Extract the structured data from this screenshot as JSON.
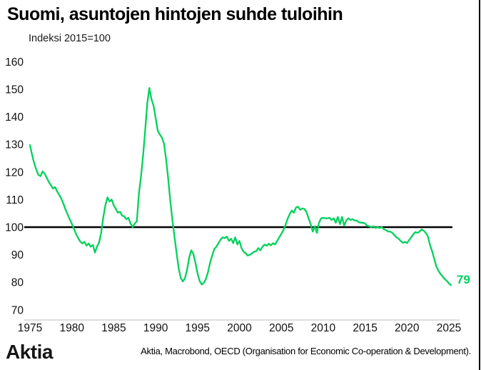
{
  "title": "Suomi, asuntojen hintojen suhde tuloihin",
  "subtitle": "Indeksi 2015=100",
  "footer": {
    "logo": "Aktia",
    "source": "Aktia, Macrobond, OECD (Organisation for Economic Co-operation & Development)."
  },
  "colors": {
    "line": "#00d15c",
    "reference": "#000000",
    "axis": "#c9c9c9",
    "text": "#111111"
  },
  "chart_data": {
    "type": "line",
    "title": "Suomi, asuntojen hintojen suhde tuloihin",
    "subtitle": "Indeksi 2015=100",
    "xlabel": "",
    "ylabel": "",
    "grid": false,
    "legend": false,
    "xlim": [
      1975,
      2026
    ],
    "ylim": [
      70,
      160
    ],
    "y_ticks": [
      160,
      150,
      140,
      130,
      120,
      110,
      100,
      90,
      80,
      70
    ],
    "x_ticks": [
      1975,
      1980,
      1985,
      1990,
      1995,
      2000,
      2005,
      2010,
      2015,
      2020,
      2025
    ],
    "reference_line": 100,
    "end_label": "79",
    "series": [
      {
        "name": "Suomi, asuntojen hintojen suhde tuloihin",
        "color": "#00d15c",
        "points": [
          [
            1975.0,
            129.8
          ],
          [
            1975.25,
            126.3
          ],
          [
            1975.5,
            123.2
          ],
          [
            1975.75,
            120.9
          ],
          [
            1976.0,
            119.0
          ],
          [
            1976.25,
            118.5
          ],
          [
            1976.5,
            120.2
          ],
          [
            1976.75,
            119.4
          ],
          [
            1977.0,
            117.9
          ],
          [
            1977.25,
            116.4
          ],
          [
            1977.5,
            115.2
          ],
          [
            1977.75,
            114.0
          ],
          [
            1978.0,
            114.5
          ],
          [
            1978.25,
            112.9
          ],
          [
            1978.5,
            111.6
          ],
          [
            1978.75,
            110.3
          ],
          [
            1979.0,
            108.4
          ],
          [
            1979.25,
            106.3
          ],
          [
            1979.5,
            104.6
          ],
          [
            1979.75,
            102.8
          ],
          [
            1980.0,
            101.2
          ],
          [
            1980.25,
            99.4
          ],
          [
            1980.5,
            97.5
          ],
          [
            1980.75,
            96.0
          ],
          [
            1981.0,
            94.8
          ],
          [
            1981.25,
            94.1
          ],
          [
            1981.5,
            94.7
          ],
          [
            1981.75,
            93.3
          ],
          [
            1982.0,
            94.1
          ],
          [
            1982.25,
            92.9
          ],
          [
            1982.5,
            93.6
          ],
          [
            1982.75,
            90.8
          ],
          [
            1983.0,
            92.9
          ],
          [
            1983.25,
            94.5
          ],
          [
            1983.5,
            98.0
          ],
          [
            1983.75,
            103.5
          ],
          [
            1984.0,
            108.0
          ],
          [
            1984.25,
            110.8
          ],
          [
            1984.5,
            109.3
          ],
          [
            1984.75,
            110.0
          ],
          [
            1985.0,
            107.9
          ],
          [
            1985.25,
            106.6
          ],
          [
            1985.5,
            105.2
          ],
          [
            1985.75,
            105.6
          ],
          [
            1986.0,
            104.2
          ],
          [
            1986.25,
            103.9
          ],
          [
            1986.5,
            102.9
          ],
          [
            1986.75,
            103.4
          ],
          [
            1987.0,
            101.3
          ],
          [
            1987.25,
            100.0
          ],
          [
            1987.5,
            101.3
          ],
          [
            1987.75,
            102.1
          ],
          [
            1988.0,
            112.0
          ],
          [
            1988.25,
            118.5
          ],
          [
            1988.5,
            126.0
          ],
          [
            1988.75,
            135.0
          ],
          [
            1989.0,
            145.0
          ],
          [
            1989.25,
            150.5
          ],
          [
            1989.5,
            146.5
          ],
          [
            1989.75,
            144.0
          ],
          [
            1990.0,
            139.5
          ],
          [
            1990.25,
            135.0
          ],
          [
            1990.5,
            133.6
          ],
          [
            1990.75,
            132.5
          ],
          [
            1991.0,
            130.3
          ],
          [
            1991.25,
            124.5
          ],
          [
            1991.5,
            117.5
          ],
          [
            1991.75,
            109.5
          ],
          [
            1992.0,
            102.5
          ],
          [
            1992.25,
            96.5
          ],
          [
            1992.5,
            90.5
          ],
          [
            1992.75,
            85.0
          ],
          [
            1993.0,
            81.5
          ],
          [
            1993.25,
            80.3
          ],
          [
            1993.5,
            81.5
          ],
          [
            1993.75,
            84.5
          ],
          [
            1994.0,
            89.0
          ],
          [
            1994.25,
            91.6
          ],
          [
            1994.5,
            90.3
          ],
          [
            1994.75,
            87.0
          ],
          [
            1995.0,
            83.2
          ],
          [
            1995.25,
            80.5
          ],
          [
            1995.5,
            79.2
          ],
          [
            1995.75,
            79.8
          ],
          [
            1996.0,
            81.2
          ],
          [
            1996.25,
            83.7
          ],
          [
            1996.5,
            87.1
          ],
          [
            1996.75,
            89.7
          ],
          [
            1997.0,
            92.1
          ],
          [
            1997.25,
            92.9
          ],
          [
            1997.5,
            94.2
          ],
          [
            1997.75,
            95.5
          ],
          [
            1998.0,
            96.3
          ],
          [
            1998.25,
            96.0
          ],
          [
            1998.5,
            96.6
          ],
          [
            1998.75,
            95.0
          ],
          [
            1999.0,
            95.8
          ],
          [
            1999.25,
            94.2
          ],
          [
            1999.5,
            96.3
          ],
          [
            1999.75,
            93.7
          ],
          [
            2000.0,
            95.0
          ],
          [
            2000.25,
            92.4
          ],
          [
            2000.5,
            91.1
          ],
          [
            2000.75,
            90.5
          ],
          [
            2001.0,
            89.7
          ],
          [
            2001.25,
            90.0
          ],
          [
            2001.5,
            90.5
          ],
          [
            2001.75,
            91.1
          ],
          [
            2002.0,
            91.3
          ],
          [
            2002.25,
            92.4
          ],
          [
            2002.5,
            91.6
          ],
          [
            2002.75,
            92.9
          ],
          [
            2003.0,
            93.7
          ],
          [
            2003.25,
            93.2
          ],
          [
            2003.5,
            94.0
          ],
          [
            2003.75,
            93.4
          ],
          [
            2004.0,
            94.2
          ],
          [
            2004.25,
            93.7
          ],
          [
            2004.5,
            95.0
          ],
          [
            2004.75,
            96.3
          ],
          [
            2005.0,
            97.6
          ],
          [
            2005.25,
            98.9
          ],
          [
            2005.5,
            100.8
          ],
          [
            2005.75,
            103.0
          ],
          [
            2006.0,
            104.7
          ],
          [
            2006.25,
            106.0
          ],
          [
            2006.5,
            105.2
          ],
          [
            2006.75,
            107.1
          ],
          [
            2007.0,
            107.4
          ],
          [
            2007.25,
            106.3
          ],
          [
            2007.5,
            106.8
          ],
          [
            2007.75,
            106.6
          ],
          [
            2008.0,
            105.5
          ],
          [
            2008.25,
            103.2
          ],
          [
            2008.5,
            101.1
          ],
          [
            2008.75,
            98.4
          ],
          [
            2009.0,
            100.3
          ],
          [
            2009.25,
            97.9
          ],
          [
            2009.5,
            101.6
          ],
          [
            2009.75,
            103.2
          ],
          [
            2010.0,
            103.4
          ],
          [
            2010.25,
            103.2
          ],
          [
            2010.5,
            103.2
          ],
          [
            2010.75,
            103.4
          ],
          [
            2011.0,
            102.6
          ],
          [
            2011.25,
            103.2
          ],
          [
            2011.5,
            101.6
          ],
          [
            2011.75,
            103.7
          ],
          [
            2012.0,
            101.1
          ],
          [
            2012.25,
            103.7
          ],
          [
            2012.5,
            100.5
          ],
          [
            2012.75,
            102.4
          ],
          [
            2013.0,
            103.2
          ],
          [
            2013.25,
            102.6
          ],
          [
            2013.5,
            102.9
          ],
          [
            2013.75,
            102.4
          ],
          [
            2014.0,
            102.4
          ],
          [
            2014.25,
            101.8
          ],
          [
            2014.5,
            101.6
          ],
          [
            2014.75,
            101.6
          ],
          [
            2015.0,
            101.3
          ],
          [
            2015.25,
            100.5
          ],
          [
            2015.5,
            100.3
          ],
          [
            2015.75,
            100.0
          ],
          [
            2016.0,
            100.3
          ],
          [
            2016.25,
            99.7
          ],
          [
            2016.5,
            100.0
          ],
          [
            2016.75,
            99.7
          ],
          [
            2017.0,
            100.0
          ],
          [
            2017.25,
            99.2
          ],
          [
            2017.5,
            98.9
          ],
          [
            2017.75,
            98.4
          ],
          [
            2018.0,
            98.4
          ],
          [
            2018.25,
            97.9
          ],
          [
            2018.5,
            97.1
          ],
          [
            2018.75,
            96.3
          ],
          [
            2019.0,
            95.8
          ],
          [
            2019.25,
            95.0
          ],
          [
            2019.5,
            94.3
          ],
          [
            2019.75,
            94.7
          ],
          [
            2020.0,
            94.2
          ],
          [
            2020.25,
            95.3
          ],
          [
            2020.5,
            96.3
          ],
          [
            2020.75,
            97.4
          ],
          [
            2021.0,
            98.2
          ],
          [
            2021.25,
            97.9
          ],
          [
            2021.5,
            98.4
          ],
          [
            2021.75,
            99.2
          ],
          [
            2022.0,
            98.7
          ],
          [
            2022.25,
            97.9
          ],
          [
            2022.5,
            96.6
          ],
          [
            2022.75,
            93.5
          ],
          [
            2023.0,
            91.3
          ],
          [
            2023.25,
            88.5
          ],
          [
            2023.5,
            85.8
          ],
          [
            2023.75,
            84.2
          ],
          [
            2024.0,
            83.0
          ],
          [
            2024.25,
            82.1
          ],
          [
            2024.5,
            81.2
          ],
          [
            2024.75,
            80.5
          ],
          [
            2025.0,
            79.6
          ],
          [
            2025.25,
            79.0
          ]
        ]
      }
    ]
  }
}
